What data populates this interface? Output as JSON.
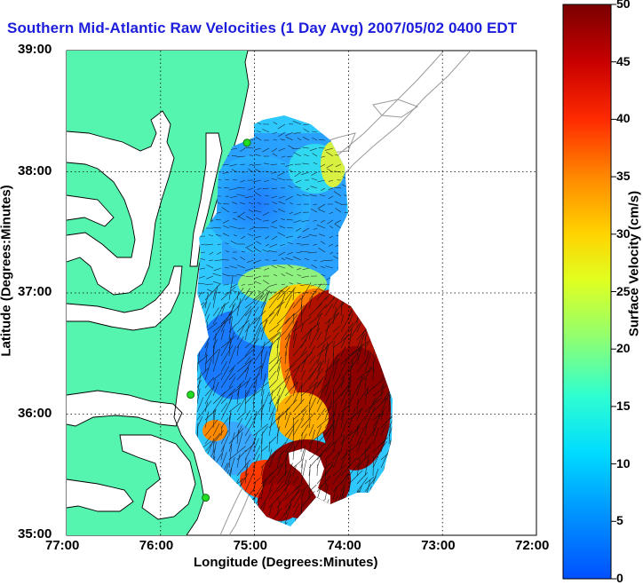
{
  "title": "Southern Mid-Atlantic Raw Velocities (1 Day Avg) 2007/05/02 0400 EDT",
  "xlabel": "Longitude (Degrees:Minutes)",
  "ylabel": "Latitude (Degrees:Minutes)",
  "x_ticks": [
    "77:00",
    "76:00",
    "75:00",
    "74:00",
    "73:00",
    "72:00"
  ],
  "y_ticks": [
    "39:00",
    "38:00",
    "37:00",
    "36:00",
    "35:00"
  ],
  "colorbar": {
    "label": "Surface Velocity (cm/s)",
    "ticks": [
      "0",
      "5",
      "10",
      "15",
      "20",
      "25",
      "30",
      "35",
      "40",
      "45",
      "50"
    ],
    "min": 0,
    "max": 50
  },
  "colors": {
    "land": "#55f5b0",
    "title": "#1d1ddc",
    "grid": "#000000"
  },
  "map_extent": {
    "lon": [
      -77.0,
      -72.0
    ],
    "lat": [
      35.0,
      39.0
    ]
  },
  "radar_sites": [
    {
      "lon": -75.08,
      "lat": 38.24
    },
    {
      "lon": -75.68,
      "lat": 36.16
    },
    {
      "lon": -75.52,
      "lat": 35.31
    }
  ]
}
